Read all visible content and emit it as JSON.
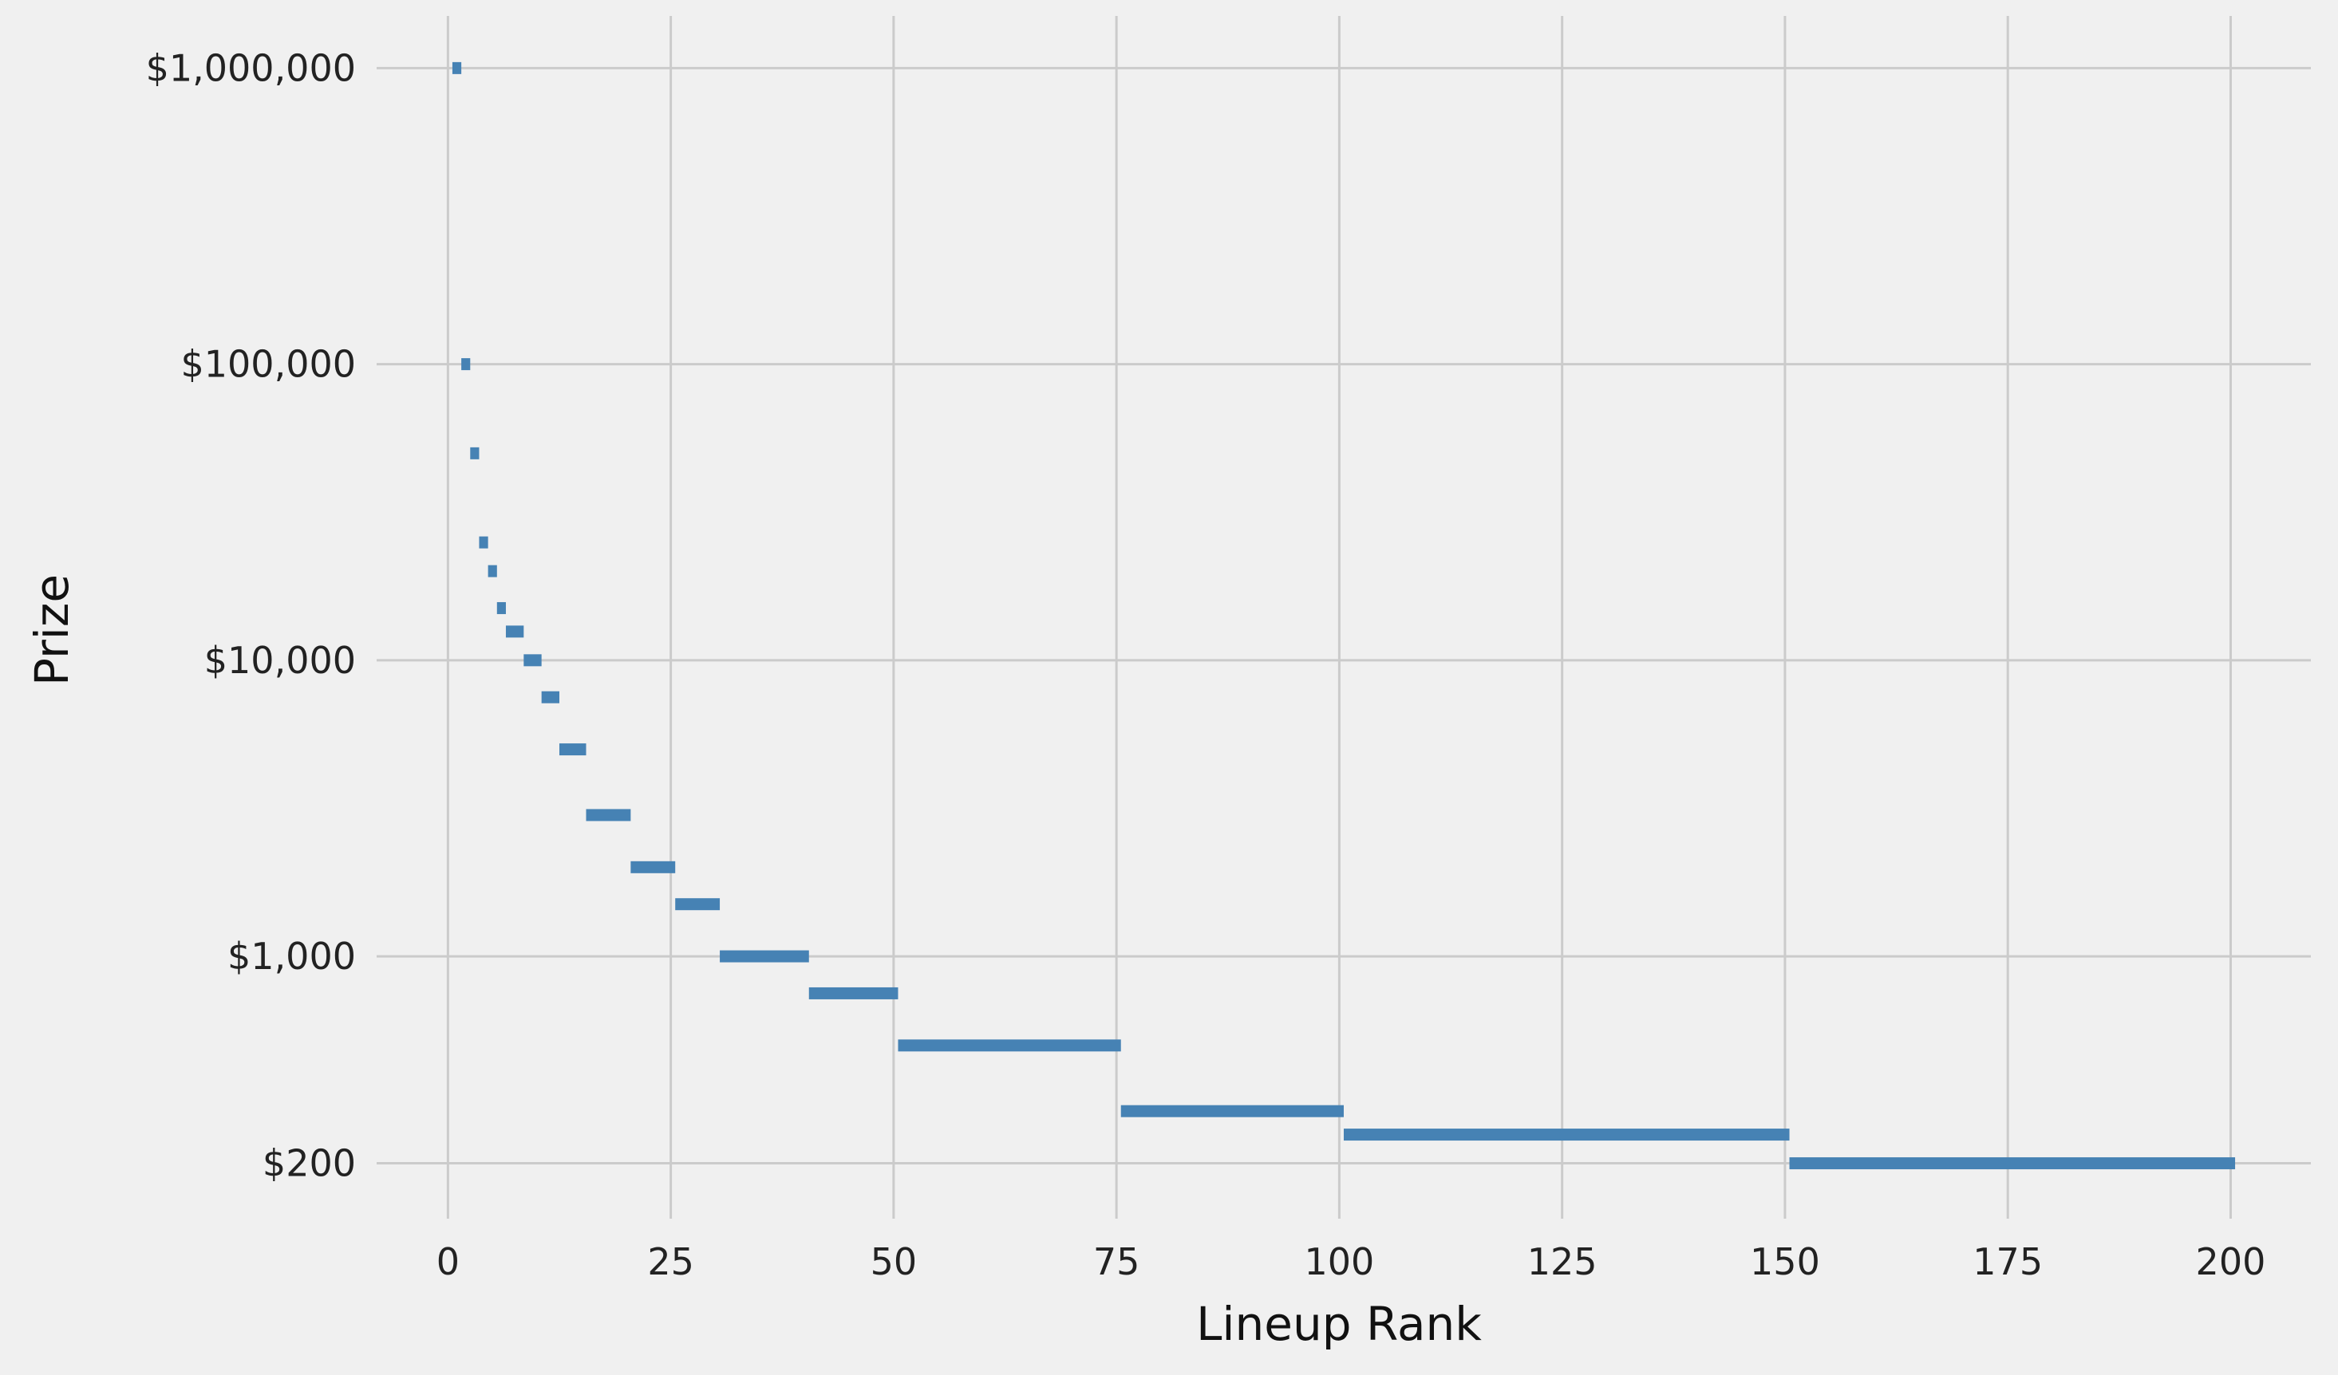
{
  "chart_data": {
    "type": "bar",
    "subtype": "horizontal-segments (prize payout by rank range)",
    "title": "",
    "xlabel": "Lineup Rank",
    "ylabel": "Prize",
    "y_scale": "log",
    "xlim": [
      -8,
      209
    ],
    "ylim": [
      130,
      1500000
    ],
    "x_ticks": [
      0,
      25,
      50,
      75,
      100,
      125,
      150,
      175,
      200
    ],
    "x_tick_labels": [
      "0",
      "25",
      "50",
      "75",
      "100",
      "125",
      "150",
      "175",
      "200"
    ],
    "y_ticks": [
      200,
      1000,
      10000,
      100000,
      1000000
    ],
    "y_tick_labels": [
      "$200",
      "$1,000",
      "$10,000",
      "$100,000",
      "$1,000,000"
    ],
    "grid": true,
    "legend": "none",
    "color": "#4682b4",
    "segments": [
      {
        "rank_start": 1,
        "rank_end": 1,
        "prize": 1000000
      },
      {
        "rank_start": 2,
        "rank_end": 2,
        "prize": 100000
      },
      {
        "rank_start": 3,
        "rank_end": 3,
        "prize": 50000
      },
      {
        "rank_start": 4,
        "rank_end": 4,
        "prize": 25000
      },
      {
        "rank_start": 5,
        "rank_end": 5,
        "prize": 20000
      },
      {
        "rank_start": 6,
        "rank_end": 6,
        "prize": 15000
      },
      {
        "rank_start": 7,
        "rank_end": 8,
        "prize": 12500
      },
      {
        "rank_start": 9,
        "rank_end": 10,
        "prize": 10000
      },
      {
        "rank_start": 11,
        "rank_end": 12,
        "prize": 7500
      },
      {
        "rank_start": 13,
        "rank_end": 15,
        "prize": 5000
      },
      {
        "rank_start": 16,
        "rank_end": 20,
        "prize": 3000
      },
      {
        "rank_start": 21,
        "rank_end": 25,
        "prize": 2000
      },
      {
        "rank_start": 26,
        "rank_end": 30,
        "prize": 1500
      },
      {
        "rank_start": 31,
        "rank_end": 40,
        "prize": 1000
      },
      {
        "rank_start": 41,
        "rank_end": 50,
        "prize": 750
      },
      {
        "rank_start": 51,
        "rank_end": 75,
        "prize": 500
      },
      {
        "rank_start": 76,
        "rank_end": 100,
        "prize": 300
      },
      {
        "rank_start": 101,
        "rank_end": 150,
        "prize": 250
      },
      {
        "rank_start": 151,
        "rank_end": 200,
        "prize": 200
      }
    ]
  }
}
